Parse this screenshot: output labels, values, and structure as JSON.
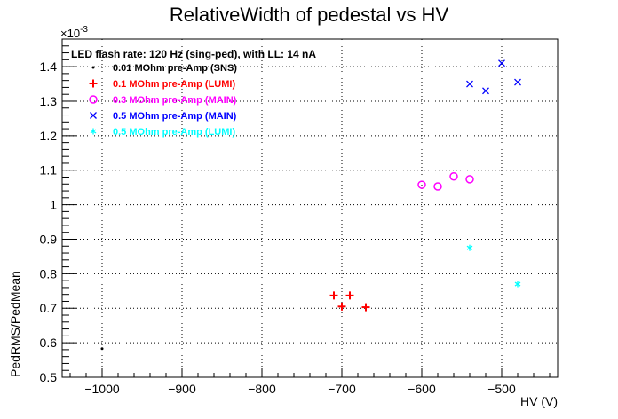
{
  "chart_data": {
    "type": "scatter",
    "title": "RelativeWidth of pedestal vs HV",
    "xlabel": "HV (V)",
    "ylabel": "PedRMS/PedMean",
    "y_exponent_label": "×10",
    "y_exponent_power": "-3",
    "xlim": [
      -1050,
      -430
    ],
    "ylim": [
      0.5,
      1.48
    ],
    "grid": true,
    "x_ticks": [
      {
        "value": -1000,
        "label": "−1000"
      },
      {
        "value": -900,
        "label": "−900"
      },
      {
        "value": -800,
        "label": "−800"
      },
      {
        "value": -700,
        "label": "−700"
      },
      {
        "value": -600,
        "label": "−600"
      },
      {
        "value": -500,
        "label": "−500"
      }
    ],
    "y_ticks": [
      {
        "value": 0.5,
        "label": "0.5"
      },
      {
        "value": 0.6,
        "label": "0.6"
      },
      {
        "value": 0.7,
        "label": "0.7"
      },
      {
        "value": 0.8,
        "label": "0.8"
      },
      {
        "value": 0.9,
        "label": "0.9"
      },
      {
        "value": 1.0,
        "label": "1"
      },
      {
        "value": 1.1,
        "label": "1.1"
      },
      {
        "value": 1.2,
        "label": "1.2"
      },
      {
        "value": 1.3,
        "label": "1.3"
      },
      {
        "value": 1.4,
        "label": "1.4"
      }
    ],
    "legend_title": "LED flash rate: 120 Hz  (sing-ped), with LL: 14 nA",
    "legend_position": "top-left",
    "series": [
      {
        "name": "0.01 MOhm pre-Amp (SNS)",
        "marker": "dot",
        "color": "#000000",
        "points": [
          [
            -1000,
            0.583
          ]
        ]
      },
      {
        "name": "0.1 MOhm pre-Amp (LUMI)",
        "marker": "plus",
        "color": "#ff0000",
        "points": [
          [
            -710,
            0.737
          ],
          [
            -700,
            0.705
          ],
          [
            -690,
            0.737
          ],
          [
            -670,
            0.703
          ]
        ]
      },
      {
        "name": "0.3 MOhm pre-Amp (MAIN)",
        "marker": "circle",
        "color": "#ff00ff",
        "points": [
          [
            -600,
            1.058
          ],
          [
            -580,
            1.053
          ],
          [
            -560,
            1.082
          ],
          [
            -540,
            1.074
          ]
        ]
      },
      {
        "name": "0.5 MOhm pre-Amp (MAIN)",
        "marker": "cross",
        "color": "#0000ff",
        "points": [
          [
            -540,
            1.35
          ],
          [
            -520,
            1.33
          ],
          [
            -500,
            1.41
          ],
          [
            -480,
            1.355
          ]
        ]
      },
      {
        "name": "0.5 MOhm pre-Amp (LUMI)",
        "marker": "star",
        "color": "#00ffff",
        "points": [
          [
            -540,
            0.875
          ],
          [
            -480,
            0.77
          ]
        ]
      }
    ]
  }
}
